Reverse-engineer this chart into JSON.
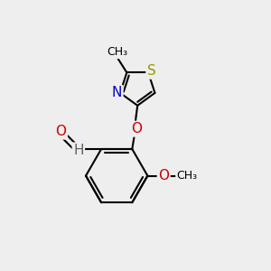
{
  "bg_color": "#eeeeee",
  "atom_colors": {
    "C": "#000000",
    "H": "#606060",
    "N": "#0000CC",
    "O": "#CC0000",
    "S": "#999900"
  },
  "bond_color": "#000000",
  "bond_width": 1.5,
  "font_size": 10,
  "title": ""
}
